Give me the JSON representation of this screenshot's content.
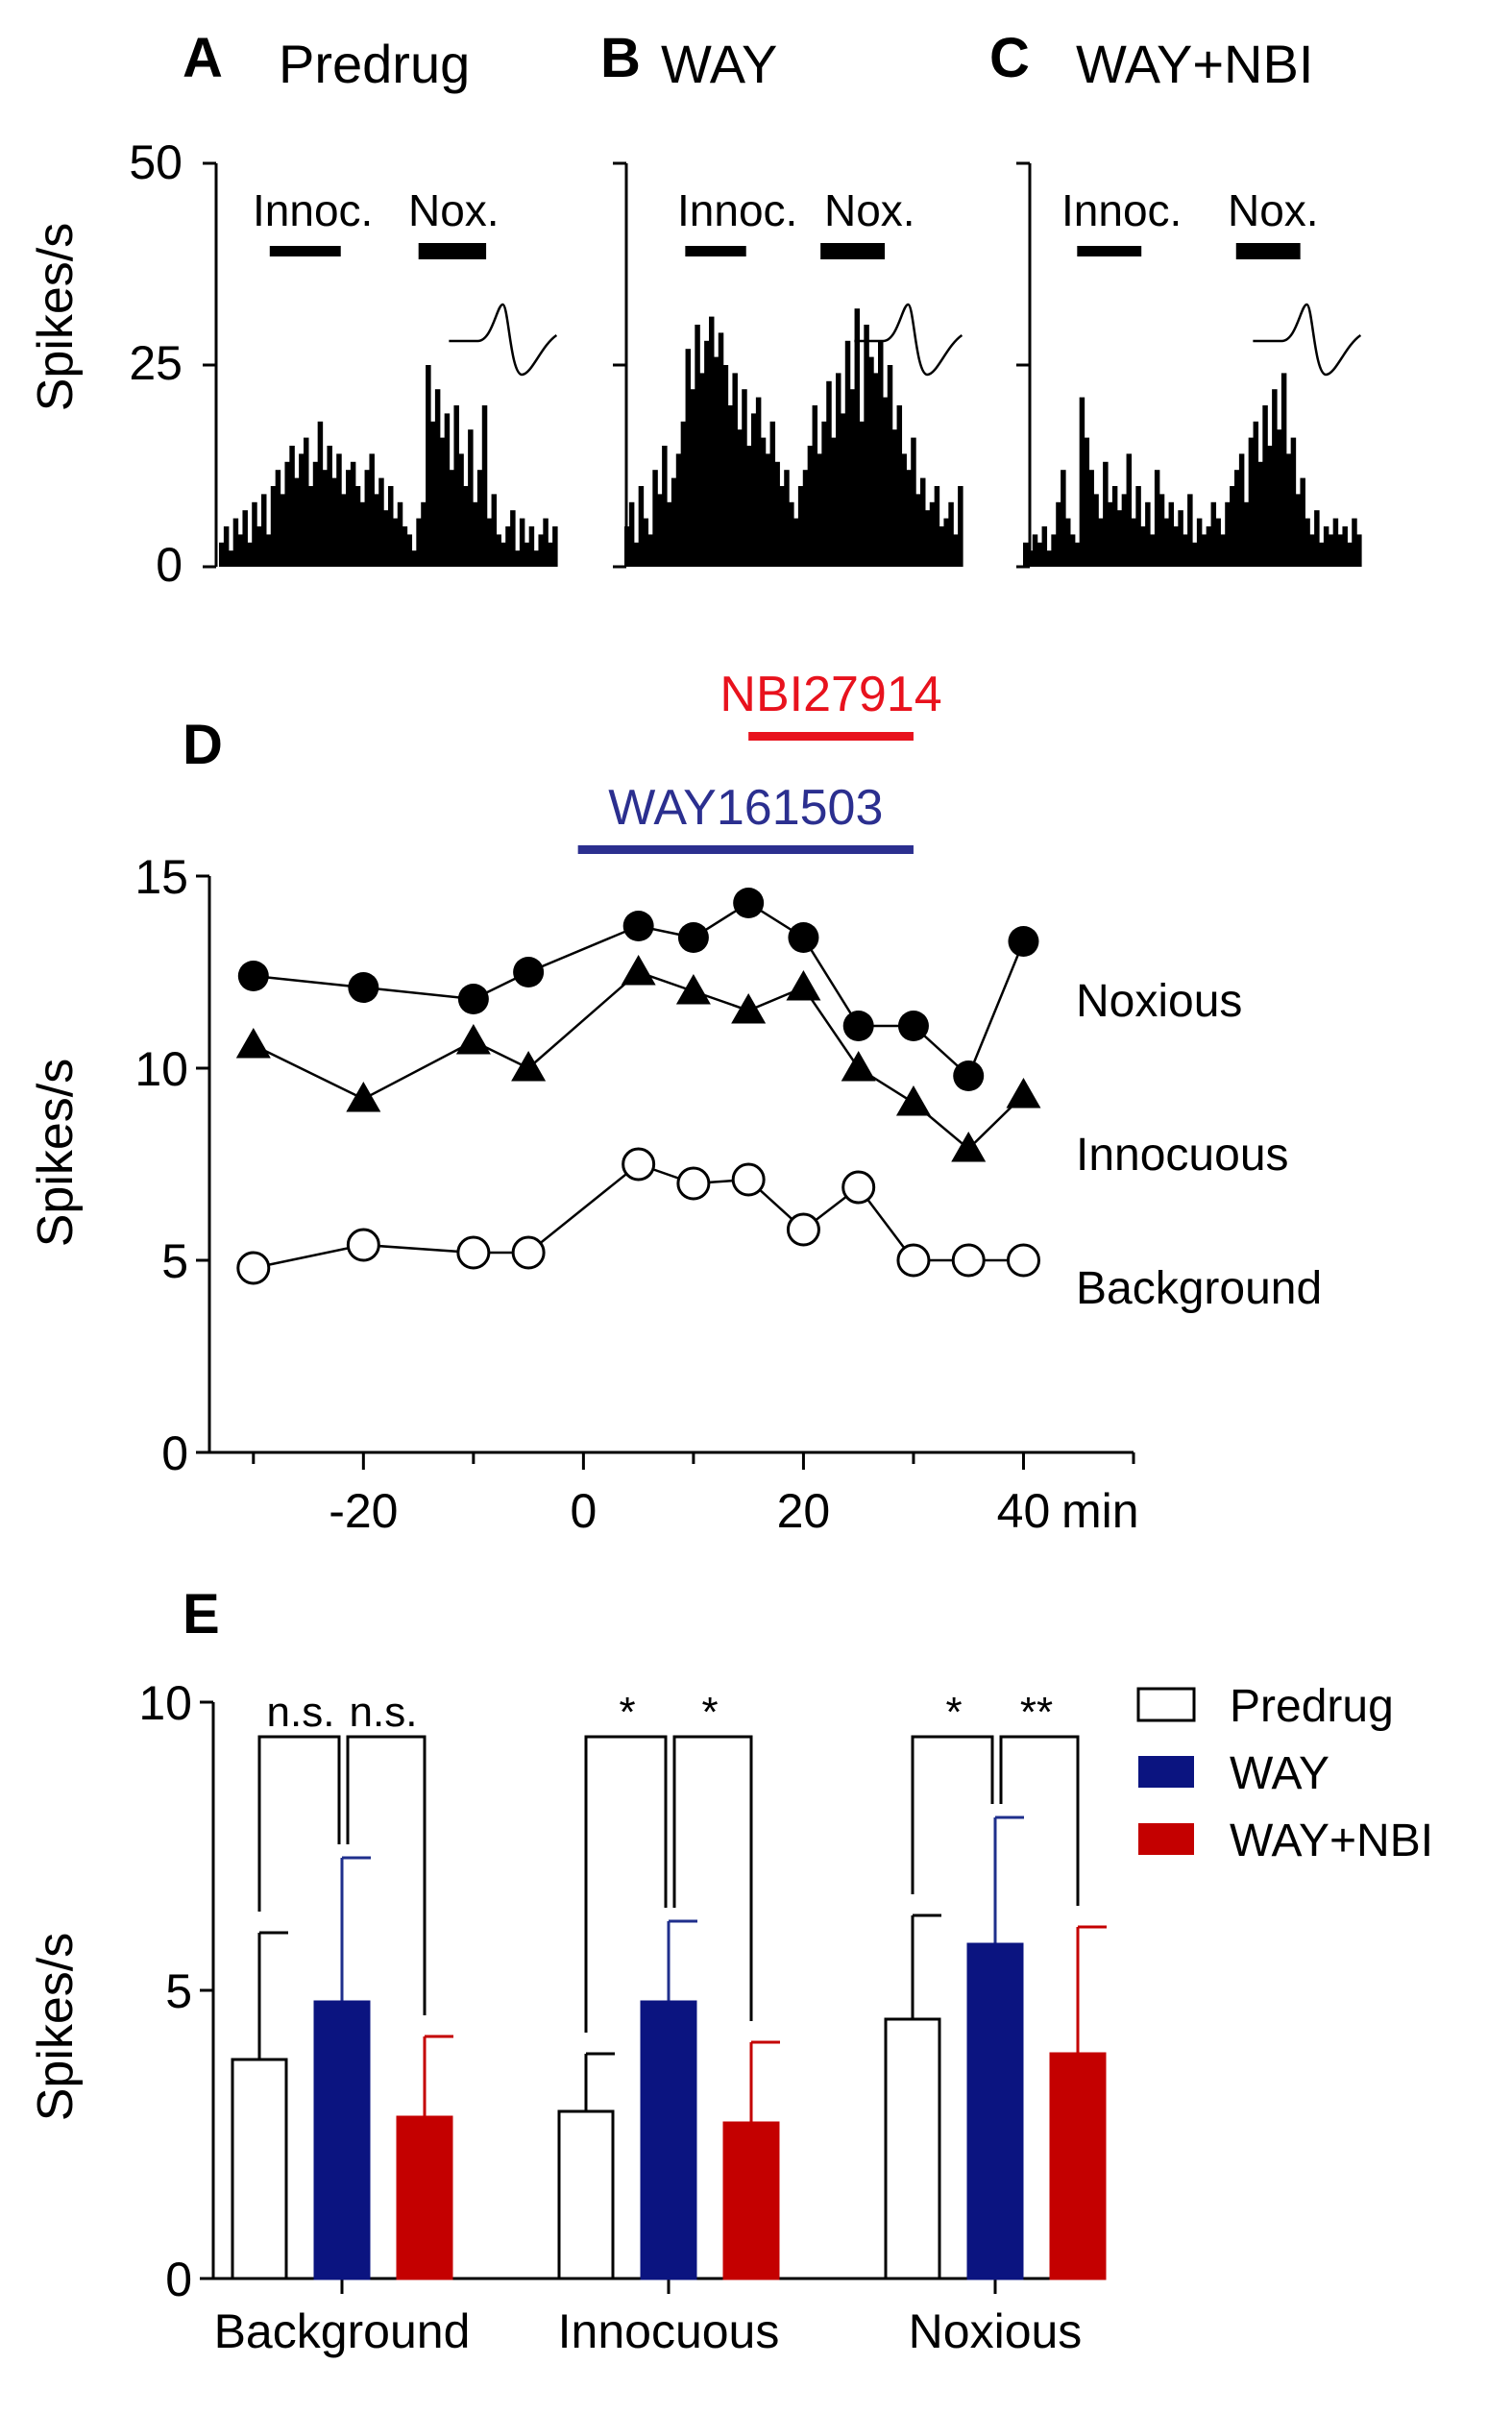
{
  "colors": {
    "black": "#000000",
    "blue": "#1f2f8c",
    "navy": "#0b1480",
    "red": "#c40000",
    "bright_red": "#e8121d"
  },
  "panels": {
    "A": {
      "letter": "A",
      "title": "Predrug"
    },
    "B": {
      "letter": "B",
      "title": "WAY"
    },
    "C": {
      "letter": "C",
      "title": "WAY+NBI"
    },
    "D": {
      "letter": "D"
    },
    "E": {
      "letter": "E"
    }
  },
  "histograms": {
    "ylabel": "Spikes/s",
    "yticks": [
      "0",
      "25",
      "50"
    ],
    "ylim": [
      0,
      50
    ],
    "innoc_label": "Innoc.",
    "nox_label": "Nox.",
    "series": [
      {
        "name": "Predrug",
        "values": [
          3,
          5,
          2,
          6,
          4,
          7,
          3,
          8,
          5,
          9,
          4,
          10,
          12,
          9,
          13,
          15,
          11,
          14,
          16,
          10,
          13,
          18,
          12,
          15,
          11,
          14,
          9,
          12,
          13,
          10,
          8,
          12,
          14,
          9,
          11,
          7,
          10,
          6,
          8,
          5,
          4,
          2,
          6,
          8,
          25,
          18,
          22,
          16,
          19,
          12,
          20,
          14,
          10,
          17,
          8,
          12,
          20,
          6,
          9,
          4,
          3,
          5,
          7,
          2,
          6,
          3,
          5,
          2,
          4,
          6,
          3,
          5
        ],
        "innoc_bar": [
          0.15,
          0.36
        ],
        "nox_bar": [
          0.59,
          0.79
        ]
      },
      {
        "name": "WAY",
        "values": [
          5,
          8,
          3,
          10,
          6,
          4,
          12,
          9,
          15,
          8,
          11,
          14,
          18,
          27,
          22,
          30,
          24,
          28,
          31,
          26,
          29,
          25,
          20,
          24,
          17,
          22,
          15,
          19,
          21,
          16,
          14,
          18,
          13,
          10,
          12,
          8,
          6,
          10,
          12,
          15,
          20,
          14,
          18,
          23,
          16,
          24,
          19,
          28,
          22,
          32,
          18,
          30,
          26,
          24,
          28,
          21,
          25,
          17,
          20,
          14,
          12,
          16,
          9,
          11,
          7,
          8,
          10,
          5,
          6,
          8,
          4,
          10
        ],
        "innoc_bar": [
          0.18,
          0.36
        ],
        "nox_bar": [
          0.58,
          0.77
        ]
      },
      {
        "name": "WAY+NBI",
        "values": [
          3,
          2,
          4,
          3,
          5,
          2,
          4,
          8,
          12,
          6,
          4,
          3,
          21,
          16,
          12,
          9,
          6,
          13,
          8,
          10,
          7,
          9,
          14,
          6,
          10,
          5,
          8,
          4,
          12,
          9,
          6,
          8,
          5,
          7,
          4,
          9,
          3,
          6,
          4,
          5,
          8,
          6,
          4,
          8,
          10,
          12,
          14,
          8,
          16,
          18,
          13,
          20,
          15,
          22,
          17,
          24,
          14,
          16,
          9,
          11,
          6,
          4,
          7,
          3,
          5,
          4,
          6,
          4,
          5,
          3,
          6,
          4
        ],
        "innoc_bar": [
          0.16,
          0.35
        ],
        "nox_bar": [
          0.63,
          0.82
        ]
      }
    ]
  },
  "timecourse": {
    "ylabel": "Spikes/s",
    "x_unit": "min",
    "xticks": [
      "-20",
      "0",
      "20",
      "40"
    ],
    "yticks": [
      "0",
      "5",
      "10",
      "15"
    ],
    "xlim": [
      -34,
      50
    ],
    "ylim": [
      0,
      15
    ],
    "drugs": [
      {
        "name": "NBI27914",
        "start": 15,
        "end": 30,
        "color": "#e8121d"
      },
      {
        "name": "WAY161503",
        "start": -0.5,
        "end": 30,
        "color": "#2b2f8f"
      }
    ],
    "series": [
      {
        "name": "Noxious",
        "marker": "filled-circle",
        "x": [
          -30,
          -20,
          -10,
          -5,
          5,
          10,
          15,
          20,
          25,
          30,
          35,
          40
        ],
        "y": [
          12.4,
          12.1,
          11.8,
          12.5,
          13.7,
          13.4,
          14.3,
          13.4,
          11.1,
          11.1,
          9.8,
          13.3
        ]
      },
      {
        "name": "Innocuous",
        "marker": "filled-triangle",
        "x": [
          -30,
          -20,
          -10,
          -5,
          5,
          10,
          15,
          20,
          25,
          30,
          35,
          40
        ],
        "y": [
          10.6,
          9.2,
          10.7,
          10.0,
          12.5,
          12.0,
          11.5,
          12.1,
          10.0,
          9.1,
          7.9,
          9.3
        ]
      },
      {
        "name": "Background",
        "marker": "open-circle",
        "x": [
          -30,
          -20,
          -10,
          -5,
          5,
          10,
          15,
          20,
          25,
          30,
          35,
          40
        ],
        "y": [
          4.8,
          5.4,
          5.2,
          5.2,
          7.5,
          7.0,
          7.1,
          5.8,
          6.9,
          5.0,
          5.0,
          5.0
        ]
      }
    ]
  },
  "chart_data": {
    "type": "bar",
    "ylabel": "Spikes/s",
    "yticks": [
      "0",
      "5",
      "10"
    ],
    "ylim": [
      0,
      10
    ],
    "categories": [
      "Background",
      "Innocuous",
      "Noxious"
    ],
    "series": [
      {
        "name": "Predrug",
        "color": "#ffffff",
        "values": [
          3.8,
          2.9,
          4.5
        ],
        "errors": [
          2.2,
          1.0,
          1.8
        ]
      },
      {
        "name": "WAY",
        "color": "#0b1480",
        "values": [
          4.8,
          4.8,
          5.8
        ],
        "errors": [
          2.5,
          1.4,
          2.2
        ]
      },
      {
        "name": "WAY+NBI",
        "color": "#c40000",
        "values": [
          2.8,
          2.7,
          3.9
        ],
        "errors": [
          1.4,
          1.4,
          2.2
        ]
      }
    ],
    "significance": [
      {
        "category": "Background",
        "left": "n.s.",
        "right": "n.s."
      },
      {
        "category": "Innocuous",
        "left": "*",
        "right": "*"
      },
      {
        "category": "Noxious",
        "left": "*",
        "right": "**"
      }
    ],
    "legend_position": "top-right"
  }
}
